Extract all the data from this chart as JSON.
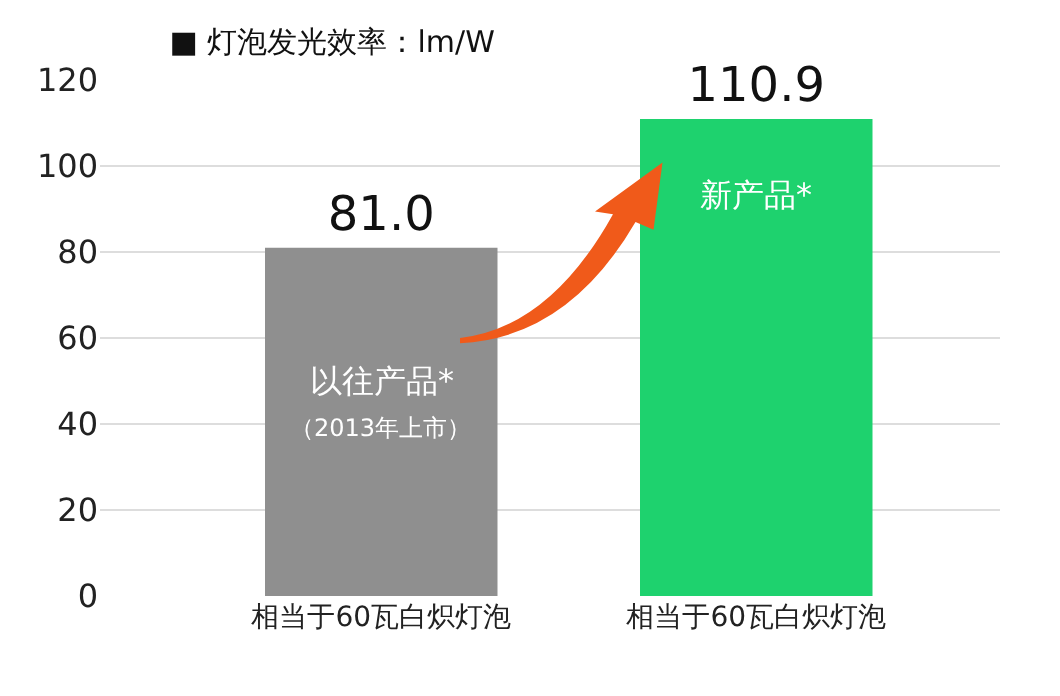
{
  "chart_data": {
    "type": "bar",
    "title": "■ 灯泡发光效率：lm/W",
    "categories": [
      "相当于60瓦白炽灯泡",
      "相当于60瓦白炽灯泡"
    ],
    "values": [
      81.0,
      110.9
    ],
    "colors": [
      "#8f8f8f",
      "#1ed26e"
    ],
    "value_labels": [
      "81.0",
      "110.9"
    ],
    "annotations": [
      "以往产品*",
      "（2013年上市）",
      "新产品*"
    ],
    "ylim": [
      0,
      120
    ],
    "yticks": [
      0,
      20,
      40,
      60,
      80,
      100,
      120
    ],
    "grid": "y",
    "legend": false
  }
}
